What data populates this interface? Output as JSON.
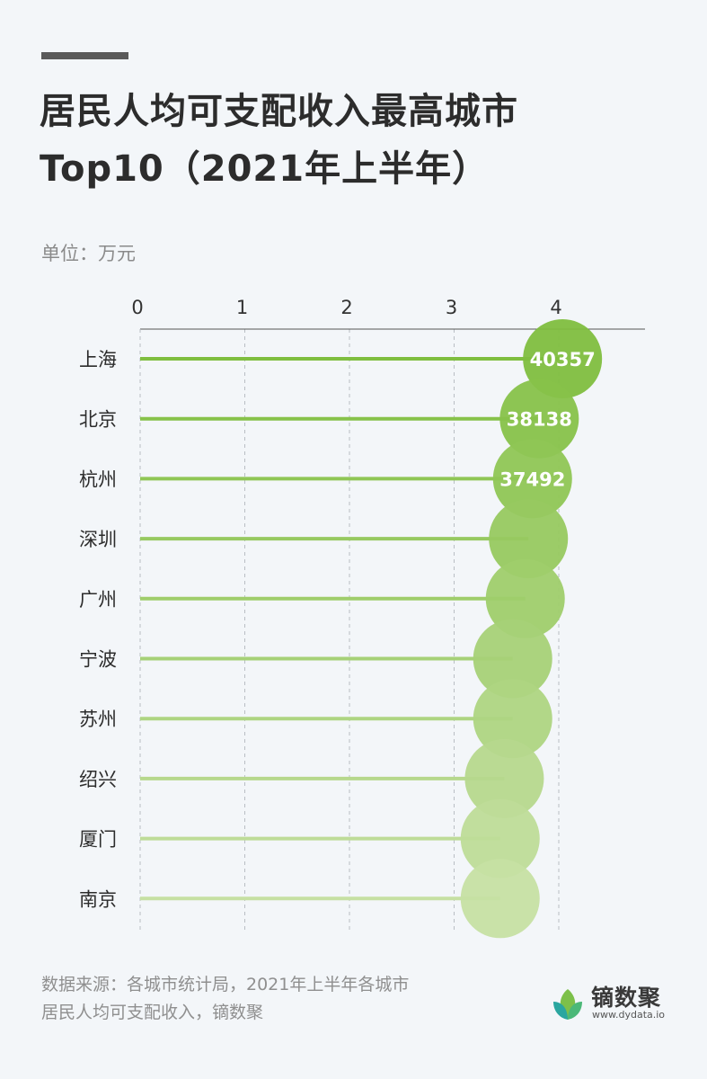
{
  "header": {
    "title_line1": "居民人均可支配收入最高城市",
    "title_line2": "Top10（2021年上半年）",
    "unit": "单位：万元"
  },
  "footer": {
    "source_line1": "数据来源：各城市统计局，2021年上半年各城市",
    "source_line2": "居民人均可支配收入，镝数聚"
  },
  "logo": {
    "name": "镝数聚",
    "url": "www.dydata.io"
  },
  "colors": {
    "dark": "#7fbe3f",
    "light": "#c6e0a3",
    "background": "#f3f6f9"
  },
  "chart_data": {
    "type": "bar",
    "title": "",
    "xlabel": "",
    "ylabel": "",
    "xlim": [
      0,
      4
    ],
    "x_ticks": [
      "0",
      "1",
      "2",
      "3",
      "4"
    ],
    "grid": true,
    "categories": [
      "上海",
      "北京",
      "杭州",
      "深圳",
      "广州",
      "宁波",
      "苏州",
      "绍兴",
      "厦门",
      "南京"
    ],
    "values": [
      4.0357,
      3.8138,
      3.7492,
      3.71,
      3.68,
      3.56,
      3.56,
      3.48,
      3.44,
      3.44
    ],
    "data_labels": [
      "40357",
      "38138",
      "37492",
      "",
      "",
      "",
      "",
      "",
      "",
      ""
    ]
  }
}
